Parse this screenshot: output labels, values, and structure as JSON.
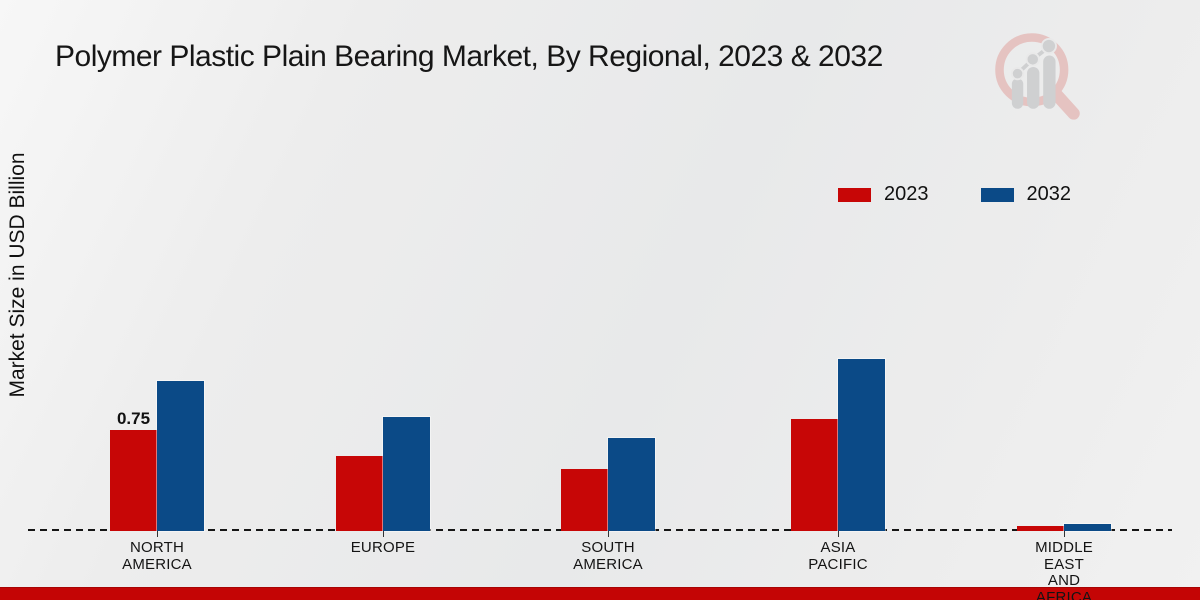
{
  "title": "Polymer Plastic Plain Bearing Market, By Regional, 2023 & 2032",
  "y_axis_label": "Market Size in USD Billion",
  "legend": {
    "position": "upper right",
    "items": [
      {
        "label": "2023",
        "color": "#c70606"
      },
      {
        "label": "2032",
        "color": "#0b4a87"
      }
    ]
  },
  "colors": {
    "series_2023": "#c70606",
    "series_2032": "#0b4a87",
    "background": "#ebebeb",
    "bottom_banner": "#c40505",
    "text": "#1a1a1a",
    "logo_ring": "#e5bfbd",
    "logo_bars": "#cccdcf"
  },
  "chart_data": {
    "type": "bar",
    "title": "Polymer Plastic Plain Bearing Market, By Regional, 2023 & 2032",
    "xlabel": "",
    "ylabel": "Market Size in USD Billion",
    "ylim": [
      0,
      1.45
    ],
    "grid": false,
    "baseline_style": "dashed",
    "legend_position": "upper right",
    "categories": [
      "North America",
      "Europe",
      "South America",
      "Asia Pacific",
      "Middle East and Africa"
    ],
    "category_tick_lines": [
      [
        "NORTH",
        "AMERICA"
      ],
      [
        "EUROPE"
      ],
      [
        "SOUTH",
        "AMERICA"
      ],
      [
        "ASIA",
        "PACIFIC"
      ],
      [
        "MIDDLE",
        "EAST",
        "AND",
        "AFRICA"
      ]
    ],
    "series": [
      {
        "name": "2023",
        "color": "#c70606",
        "values": [
          0.75,
          0.56,
          0.46,
          0.83,
          0.04
        ]
      },
      {
        "name": "2032",
        "color": "#0b4a87",
        "values": [
          1.11,
          0.85,
          0.69,
          1.28,
          0.05
        ]
      }
    ],
    "annotations": [
      {
        "text": "0.75",
        "series_index": 0,
        "category_index": 0
      }
    ]
  },
  "logo": {
    "name": "magnifier-bar-chart-watermark"
  }
}
